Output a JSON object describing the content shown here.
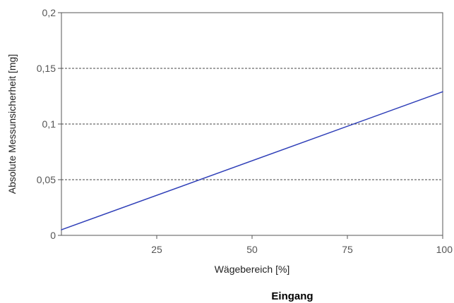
{
  "chart_data": {
    "type": "line",
    "title": "",
    "xlabel": "Wägebereich [%]",
    "ylabel": "Absolute Messunsicherheit [mg]",
    "xlim": [
      0,
      100
    ],
    "ylim": [
      0,
      0.2
    ],
    "x_ticks": [
      {
        "value": 25,
        "label": "25"
      },
      {
        "value": 50,
        "label": "50"
      },
      {
        "value": 75,
        "label": "75"
      },
      {
        "value": 100,
        "label": "100"
      }
    ],
    "y_ticks": [
      {
        "value": 0,
        "label": "0"
      },
      {
        "value": 0.05,
        "label": "0,05"
      },
      {
        "value": 0.1,
        "label": "0,1"
      },
      {
        "value": 0.15,
        "label": "0,15"
      },
      {
        "value": 0.2,
        "label": "0,2"
      }
    ],
    "grid": {
      "horizontal": true,
      "style": "dashed"
    },
    "series": [
      {
        "color": "#2f3fb8",
        "points": [
          {
            "x": 0,
            "y": 0.005
          },
          {
            "x": 100,
            "y": 0.129
          }
        ]
      }
    ]
  },
  "caption": "Eingang"
}
